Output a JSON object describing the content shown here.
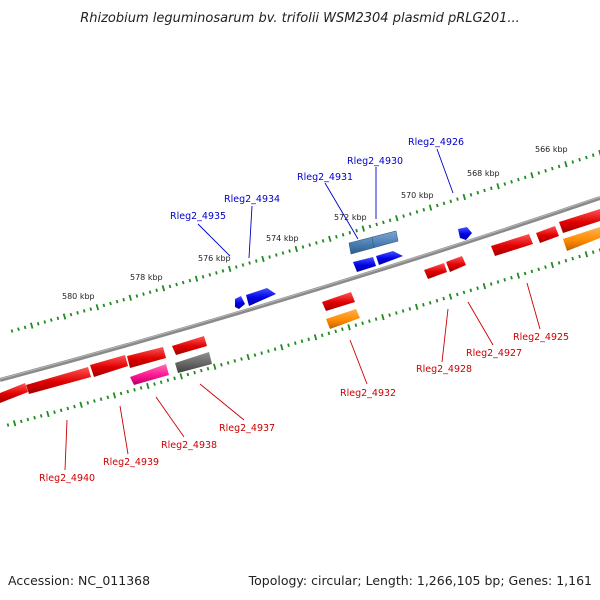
{
  "title": "Rhizobium leguminosarum bv. trifolii WSM2304 plasmid pRLG201...",
  "footer": {
    "accession": "Accession: NC_011368",
    "topology": "Topology: circular; Length: 1,266,105 bp; Genes: 1,161"
  },
  "scale_labels": [
    "580 kbp",
    "578 kbp",
    "576 kbp",
    "574 kbp",
    "572 kbp",
    "570 kbp",
    "568 kbp",
    "566 kbp"
  ],
  "genes_forward": [
    {
      "name": "Rleg2_4935",
      "color": "#0000cc"
    },
    {
      "name": "Rleg2_4934",
      "color": "#0000cc"
    },
    {
      "name": "Rleg2_4931",
      "color": "#0000cc"
    },
    {
      "name": "Rleg2_4930",
      "color": "#0000cc"
    },
    {
      "name": "Rleg2_4926",
      "color": "#0000cc"
    }
  ],
  "genes_reverse": [
    {
      "name": "Rleg2_4940",
      "color": "#cc0000"
    },
    {
      "name": "Rleg2_4939",
      "color": "#cc0000"
    },
    {
      "name": "Rleg2_4938",
      "color": "#cc0000"
    },
    {
      "name": "Rleg2_4937",
      "color": "#cc0000"
    },
    {
      "name": "Rleg2_4932",
      "color": "#cc0000"
    },
    {
      "name": "Rleg2_4928",
      "color": "#cc0000"
    },
    {
      "name": "Rleg2_4927",
      "color": "#cc0000"
    },
    {
      "name": "Rleg2_4925",
      "color": "#cc0000"
    }
  ],
  "colors": {
    "backbone": "#808080",
    "forward_gene": "#0000ee",
    "forward_gene_alt": "#4a7fb5",
    "reverse_gene": "#ee0000",
    "reverse_gene_orange": "#ff8c00",
    "reverse_gene_magenta": "#ff1493",
    "reverse_gene_gray": "#606060",
    "scale_dots": "#228b22"
  }
}
